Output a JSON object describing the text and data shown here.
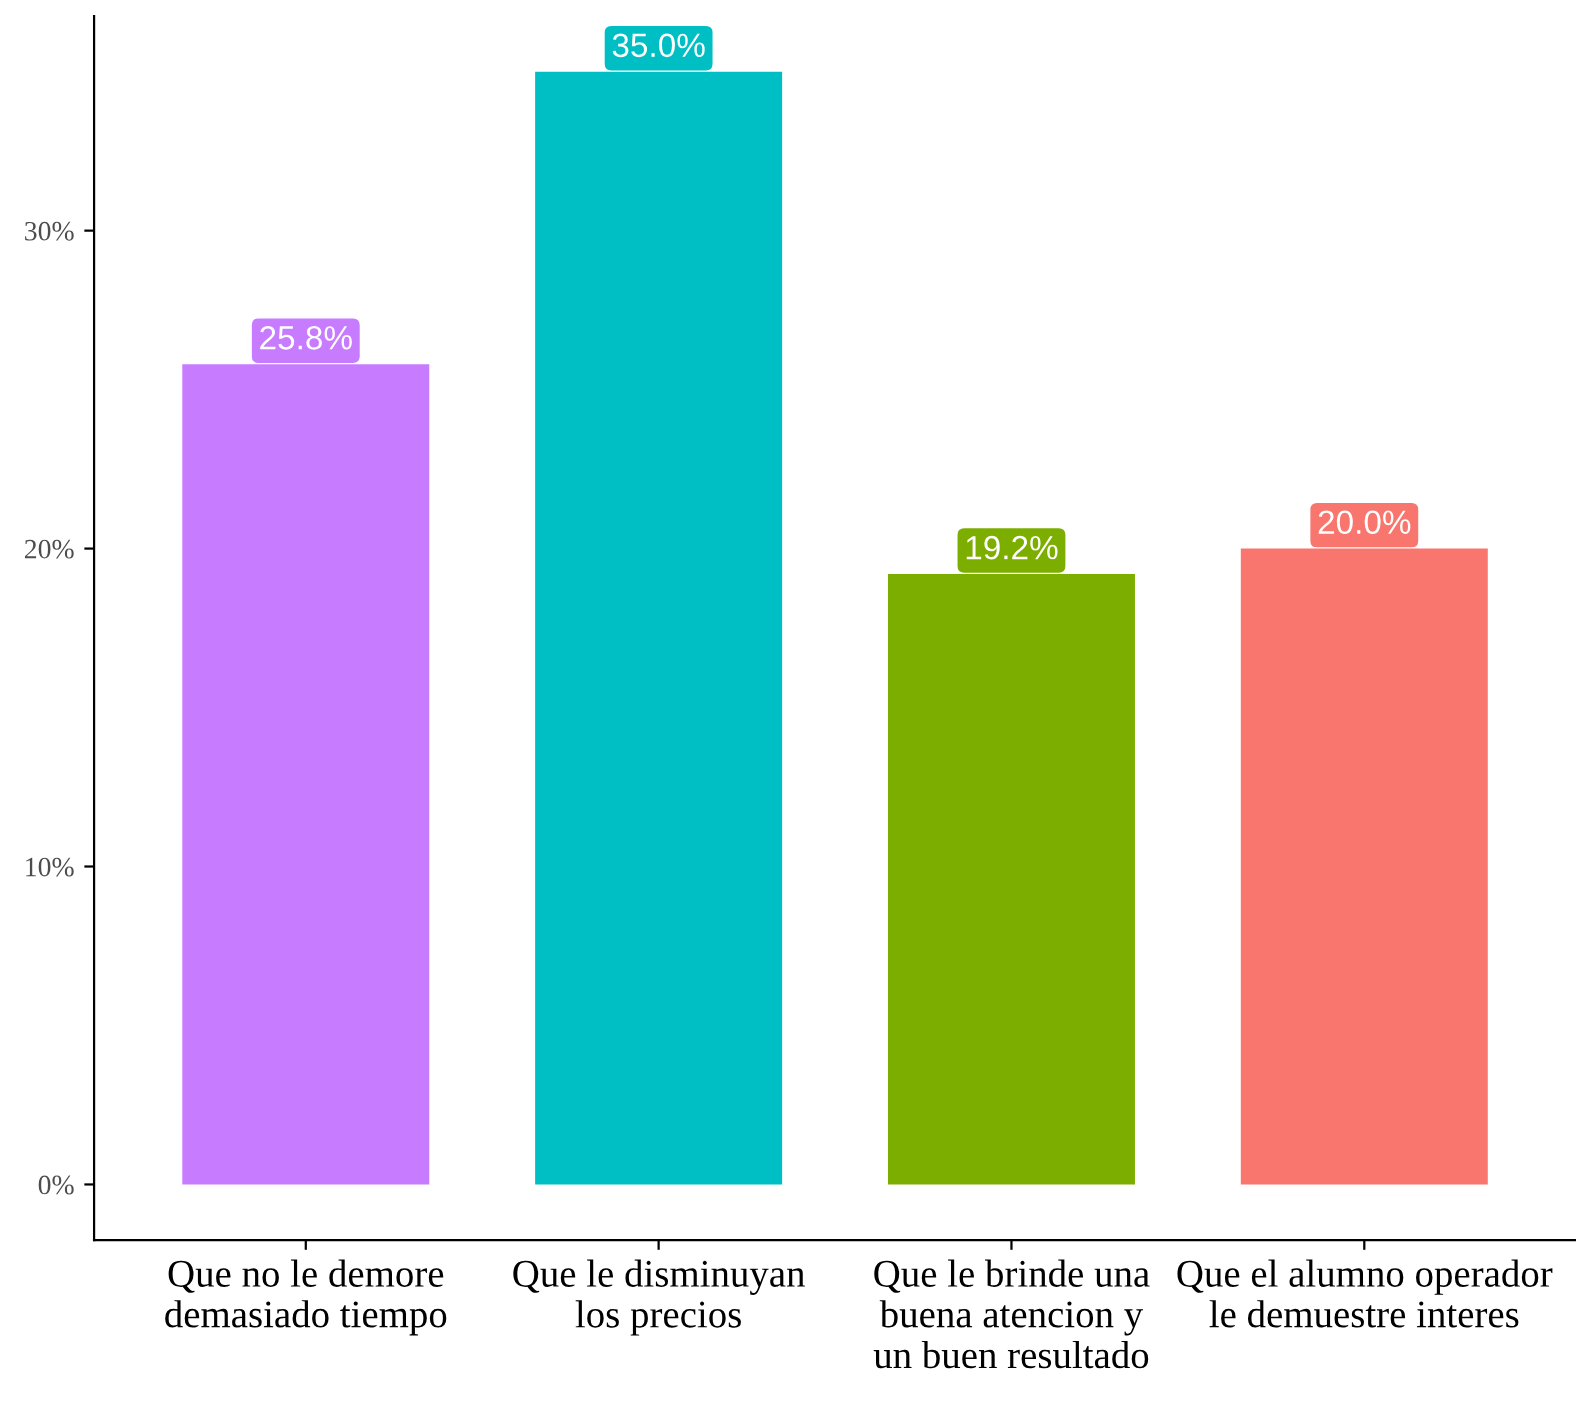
{
  "chart_data": {
    "type": "bar",
    "categories": [
      "Que no le demore\ndemasiado tiempo",
      "Que le disminuyan\nlos precios",
      "Que le brinde una\nbuena atencion y\nun buen resultado",
      "Que el alumno operador\nle demuestre interes"
    ],
    "values": [
      25.8,
      35.0,
      19.2,
      20.0
    ],
    "colors": [
      "#c77cff",
      "#00bfc4",
      "#7cae00",
      "#f8766d"
    ],
    "value_labels": [
      "25.8%",
      "35.0%",
      "19.2%",
      "20.0%"
    ],
    "ylim": [
      -1.75,
      36.75
    ],
    "yticks": [
      {
        "value": 0,
        "label": "0%"
      },
      {
        "value": 10,
        "label": "10%"
      },
      {
        "value": 20,
        "label": "20%"
      },
      {
        "value": 30,
        "label": "30%"
      }
    ],
    "grid": false,
    "legend": false
  }
}
